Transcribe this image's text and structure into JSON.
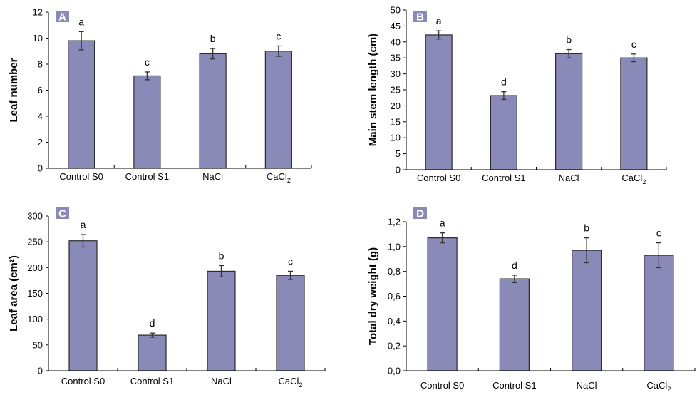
{
  "colors": {
    "bar_fill": "#8a8ab9",
    "bar_stroke": "#2a2a2a",
    "badge": "#8a8ab9",
    "axis": "#000000"
  },
  "chart_data": [
    {
      "type": "bar",
      "panel": "A",
      "title": "",
      "xlabel": "",
      "ylabel": "Leaf number",
      "ylim": [
        0,
        12
      ],
      "yticks": [
        0,
        2,
        4,
        6,
        8,
        10,
        12
      ],
      "ytick_labels": [
        "0",
        "2",
        "4",
        "6",
        "8",
        "10",
        "12"
      ],
      "categories": [
        "Control S0",
        "Control S1",
        "NaCl",
        "CaCl2"
      ],
      "values": [
        9.8,
        7.1,
        8.8,
        9.0
      ],
      "errors": [
        0.7,
        0.3,
        0.4,
        0.4
      ],
      "significance": [
        "a",
        "c",
        "b",
        "c"
      ],
      "grid": false,
      "legend": "none"
    },
    {
      "type": "bar",
      "panel": "B",
      "title": "",
      "xlabel": "",
      "ylabel": "Main stem length (cm)",
      "ylim": [
        0,
        50
      ],
      "yticks": [
        0,
        5,
        10,
        15,
        20,
        25,
        30,
        35,
        40,
        45,
        50
      ],
      "ytick_labels": [
        "0",
        "5",
        "10",
        "15",
        "20",
        "25",
        "30",
        "35",
        "40",
        "45",
        "50"
      ],
      "categories": [
        "Control S0",
        "Control S1",
        "NaCl",
        "CaCl2"
      ],
      "values": [
        42.2,
        23.2,
        36.3,
        35.0
      ],
      "errors": [
        1.3,
        1.2,
        1.3,
        1.2
      ],
      "significance": [
        "a",
        "d",
        "b",
        "c"
      ],
      "grid": false,
      "legend": "none"
    },
    {
      "type": "bar",
      "panel": "C",
      "title": "",
      "xlabel": "",
      "ylabel": "Leaf area (cm²)",
      "ylim": [
        0,
        300
      ],
      "yticks": [
        0,
        50,
        100,
        150,
        200,
        250,
        300
      ],
      "ytick_labels": [
        "0",
        "50",
        "100",
        "150",
        "200",
        "250",
        "300"
      ],
      "categories": [
        "Control S0",
        "Control S1",
        "NaCl",
        "CaCl2"
      ],
      "values": [
        252,
        69,
        193,
        185
      ],
      "errors": [
        12,
        4,
        11,
        8
      ],
      "significance": [
        "a",
        "d",
        "b",
        "c"
      ],
      "grid": false,
      "legend": "none"
    },
    {
      "type": "bar",
      "panel": "D",
      "title": "",
      "xlabel": "",
      "ylabel": "Total dry weight (g)",
      "ylim": [
        0,
        1.2
      ],
      "yticks": [
        0,
        0.2,
        0.4,
        0.6,
        0.8,
        1.0,
        1.2
      ],
      "ytick_labels": [
        "0,0",
        "0,2",
        "0,4",
        "0,6",
        "0,8",
        "1,0",
        "1,2"
      ],
      "categories": [
        "Control S0",
        "Control S1",
        "NaCl",
        "CaCl2"
      ],
      "values": [
        1.07,
        0.74,
        0.97,
        0.93
      ],
      "errors": [
        0.04,
        0.03,
        0.1,
        0.1
      ],
      "significance": [
        "a",
        "d",
        "b",
        "c"
      ],
      "grid": false,
      "legend": "none"
    }
  ]
}
